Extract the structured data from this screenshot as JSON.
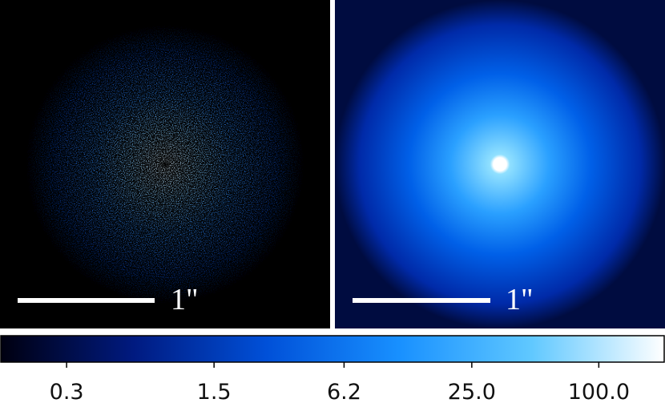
{
  "panels": [
    {
      "scale_label": "1\""
    },
    {
      "scale_label": "1\""
    }
  ],
  "chart_data": {
    "type": "colorbar",
    "log_scale": true,
    "clim": [
      0.145,
      206
    ],
    "colors": [
      "#000010",
      "#001a80",
      "#0050d8",
      "#1890ff",
      "#60c8ff",
      "#ffffff"
    ],
    "ticks": [
      0.3,
      1.5,
      6.2,
      {
        "value": 25,
        "label": "25.0"
      },
      {
        "value": 100,
        "label": "100.0"
      }
    ]
  }
}
